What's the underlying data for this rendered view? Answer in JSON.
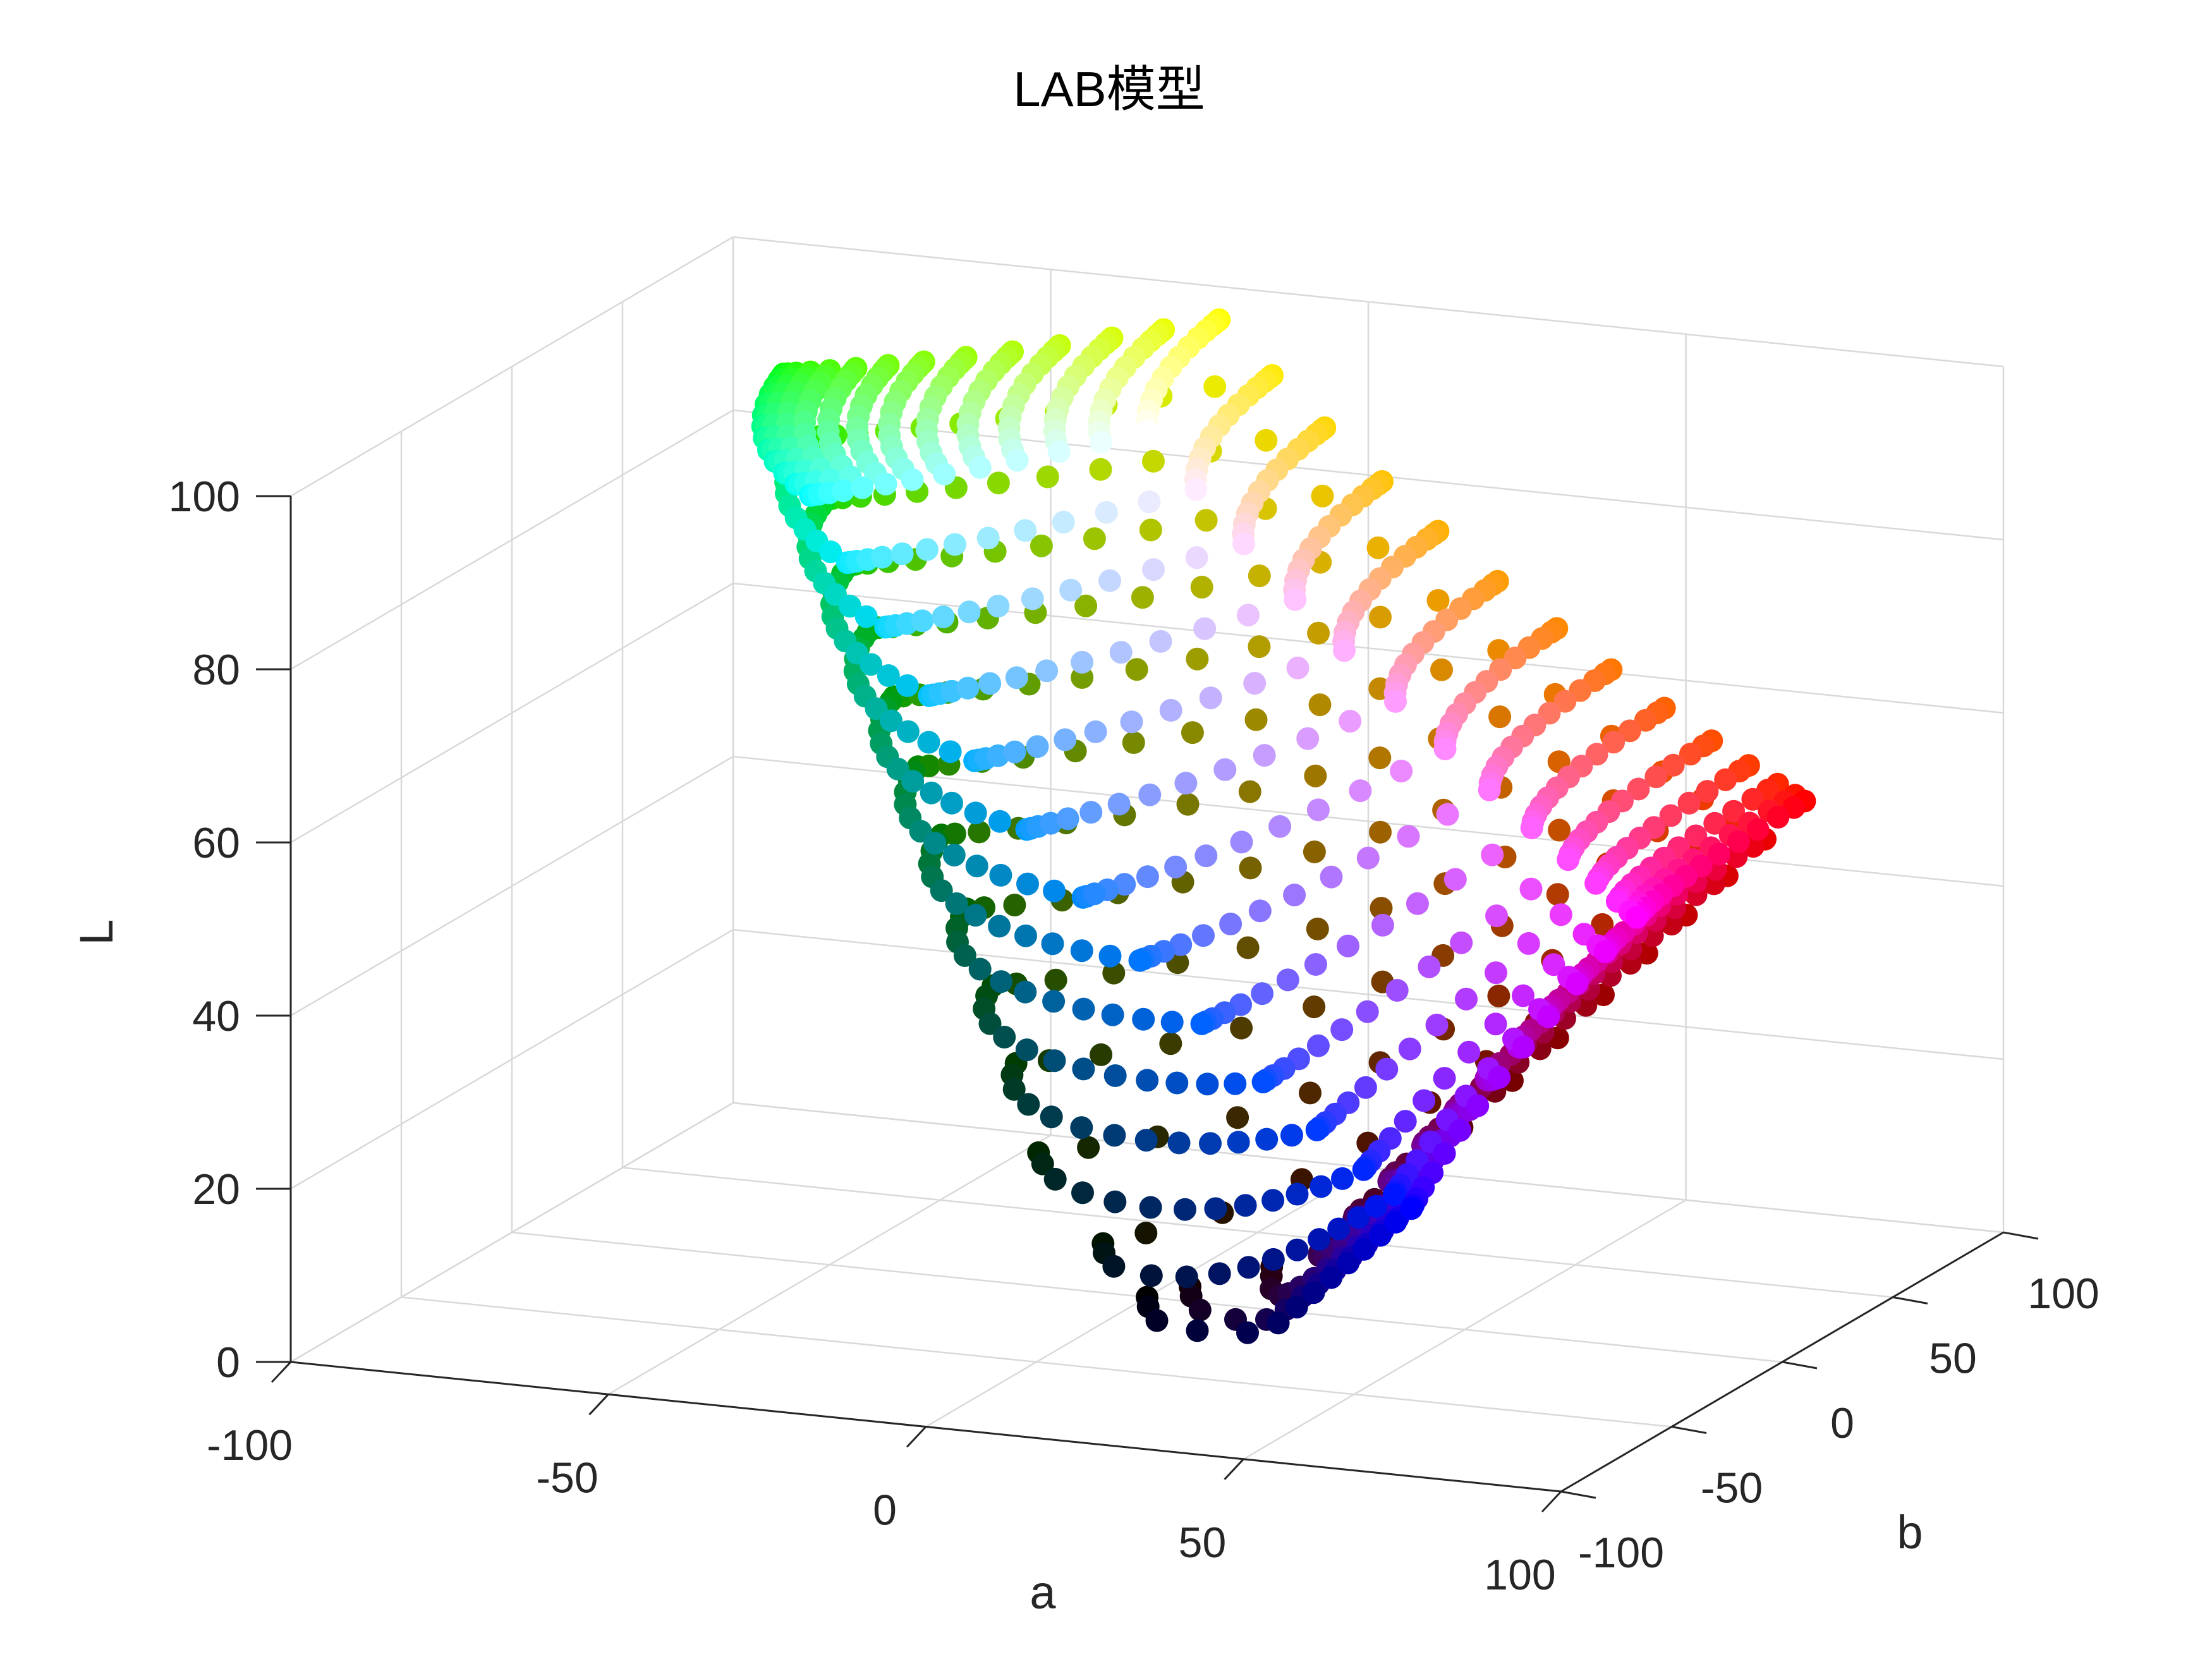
{
  "chart_data": {
    "type": "scatter",
    "projection": "3d",
    "title": "LAB模型",
    "xlabel": "a",
    "ylabel": "b",
    "zlabel": "L",
    "xlim": [
      -100,
      100
    ],
    "ylim": [
      -100,
      100
    ],
    "zlim": [
      0,
      100
    ],
    "xticks": [
      "-100",
      "-50",
      "0",
      "50",
      "100"
    ],
    "yticks": [
      "-100",
      "-50",
      "0",
      "50",
      "100"
    ],
    "zticks": [
      "0",
      "20",
      "40",
      "60",
      "80",
      "100"
    ],
    "grid": true,
    "marker": "filled circle",
    "color_encoding": "each point drawn in its own sRGB color",
    "data_source": "sRGB color cube sampled at 14 levels per channel (0 to 255), shell of cube only, converted to CIE L*a*b* (D65)",
    "rgb_levels_per_channel": 14
  }
}
